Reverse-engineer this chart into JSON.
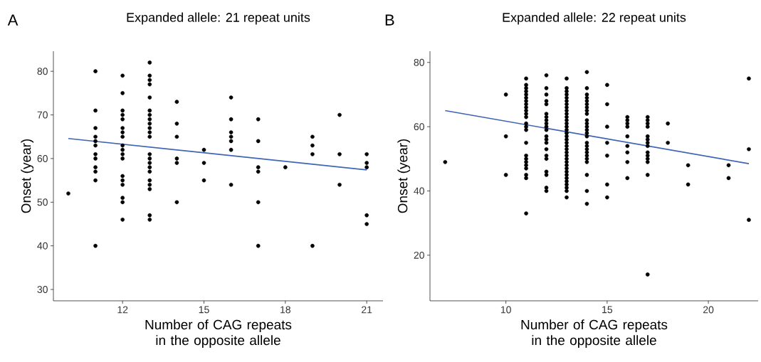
{
  "chart_data": [
    {
      "type": "scatter",
      "title": "Expanded allele: 21 repeat units",
      "xlabel": "Number of CAG repeats in the opposite allele",
      "ylabel": "Onset (year)",
      "annotations": [
        "A"
      ],
      "xlim": [
        9.45,
        21.6
      ],
      "ylim": [
        27.4,
        84.6
      ],
      "xticks": [
        12,
        15,
        18,
        21
      ],
      "yticks": [
        30,
        40,
        50,
        60,
        70,
        80
      ],
      "series": [
        {
          "color": "#000000",
          "marker": "circle",
          "x": [
            10,
            11,
            11,
            11,
            11,
            11,
            11,
            11,
            11,
            11,
            11,
            11,
            11,
            12,
            12,
            12,
            12,
            12,
            12,
            12,
            12,
            12,
            12,
            12,
            12,
            12,
            12,
            12,
            12,
            12,
            12,
            13,
            13,
            13,
            13,
            13,
            13,
            13,
            13,
            13,
            13,
            13,
            13,
            13,
            13,
            13,
            13,
            13,
            13,
            13,
            13,
            13,
            13,
            14,
            14,
            14,
            14,
            14,
            14,
            15,
            15,
            15,
            16,
            16,
            16,
            16,
            16,
            16,
            16,
            17,
            17,
            17,
            17,
            17,
            17,
            18,
            19,
            19,
            19,
            19,
            20,
            20,
            20,
            21,
            21,
            21,
            21,
            21
          ],
          "values": [
            52,
            80,
            71,
            67,
            65,
            64,
            63,
            61,
            60,
            58,
            57,
            55,
            40,
            79,
            75,
            71,
            70,
            69,
            67,
            66,
            65,
            63,
            62,
            61,
            60,
            56,
            55,
            54,
            51,
            50,
            46,
            82,
            79,
            78,
            77,
            74,
            71,
            70,
            69,
            68,
            67,
            66,
            65,
            61,
            60,
            59,
            58,
            57,
            55,
            54,
            53,
            47,
            46,
            73,
            68,
            65,
            60,
            59,
            50,
            62,
            59,
            55,
            74,
            69,
            66,
            65,
            64,
            62,
            54,
            69,
            64,
            58,
            57,
            50,
            40,
            58,
            65,
            63,
            61,
            40,
            70,
            61,
            54,
            61,
            59,
            58,
            47,
            45
          ]
        },
        {
          "type": "line",
          "color": "#3e64b5",
          "marker": "none",
          "x": [
            10,
            21
          ],
          "values": [
            64.6,
            57.4
          ]
        }
      ]
    },
    {
      "type": "scatter",
      "title": "Expanded allele: 22 repeat units",
      "xlabel": "Number of CAG repeats in the opposite allele",
      "ylabel": "Onset (year)",
      "annotations": [
        "B"
      ],
      "xlim": [
        6.25,
        22.46
      ],
      "ylim": [
        5.8,
        83.5
      ],
      "xticks": [
        10,
        15,
        20
      ],
      "yticks": [
        20,
        40,
        60,
        80
      ],
      "series": [
        {
          "color": "#000000",
          "marker": "circle",
          "x": [
            7,
            10,
            10,
            10,
            11,
            11,
            11,
            11,
            11,
            11,
            11,
            11,
            11,
            11,
            11,
            11,
            11,
            11,
            11,
            11,
            11,
            11,
            11,
            11,
            11,
            11,
            11,
            11,
            12,
            12,
            12,
            12,
            12,
            12,
            12,
            12,
            12,
            12,
            12,
            12,
            12,
            12,
            12,
            12,
            12,
            12,
            12,
            12,
            12,
            13,
            13,
            13,
            13,
            13,
            13,
            13,
            13,
            13,
            13,
            13,
            13,
            13,
            13,
            13,
            13,
            13,
            13,
            13,
            13,
            13,
            13,
            13,
            13,
            13,
            13,
            13,
            13,
            13,
            13,
            13,
            13,
            13,
            13,
            13,
            14,
            14,
            14,
            14,
            14,
            14,
            14,
            14,
            14,
            14,
            14,
            14,
            14,
            14,
            14,
            14,
            14,
            14,
            14,
            14,
            14,
            14,
            14,
            14,
            14,
            15,
            15,
            15,
            15,
            15,
            15,
            15,
            16,
            16,
            16,
            16,
            16,
            16,
            16,
            16,
            16,
            17,
            17,
            17,
            17,
            17,
            17,
            17,
            17,
            17,
            17,
            17,
            17,
            17,
            17,
            18,
            18,
            19,
            19,
            21,
            21,
            22,
            22,
            22
          ],
          "values": [
            49,
            70,
            57,
            45,
            75,
            73,
            72,
            71,
            70,
            69,
            68,
            67,
            66,
            65,
            64,
            63,
            61,
            60,
            59,
            55,
            51,
            50,
            49,
            48,
            47,
            45,
            44,
            33,
            76,
            72,
            70,
            68,
            67,
            64,
            63,
            62,
            61,
            60,
            59,
            57,
            56,
            55,
            53,
            51,
            50,
            46,
            45,
            41,
            40,
            75,
            72,
            71,
            70,
            69,
            68,
            67,
            66,
            65,
            64,
            63,
            62,
            61,
            60,
            59,
            58,
            57,
            56,
            55,
            54,
            53,
            52,
            51,
            50,
            49,
            48,
            47,
            46,
            45,
            44,
            43,
            42,
            41,
            40,
            38,
            77,
            72,
            70,
            69,
            68,
            67,
            66,
            65,
            64,
            62,
            61,
            60,
            59,
            58,
            57,
            55,
            54,
            53,
            52,
            51,
            50,
            49,
            45,
            40,
            36,
            73,
            67,
            60,
            55,
            51,
            42,
            38,
            63,
            62,
            61,
            60,
            57,
            54,
            52,
            49,
            44,
            63,
            62,
            61,
            60,
            57,
            56,
            55,
            54,
            52,
            51,
            50,
            49,
            45,
            14,
            61,
            55,
            48,
            42,
            48,
            44,
            75,
            53,
            31
          ]
        },
        {
          "type": "line",
          "color": "#3e64b5",
          "marker": "none",
          "x": [
            7,
            22
          ],
          "values": [
            65,
            48.5
          ]
        }
      ]
    }
  ]
}
